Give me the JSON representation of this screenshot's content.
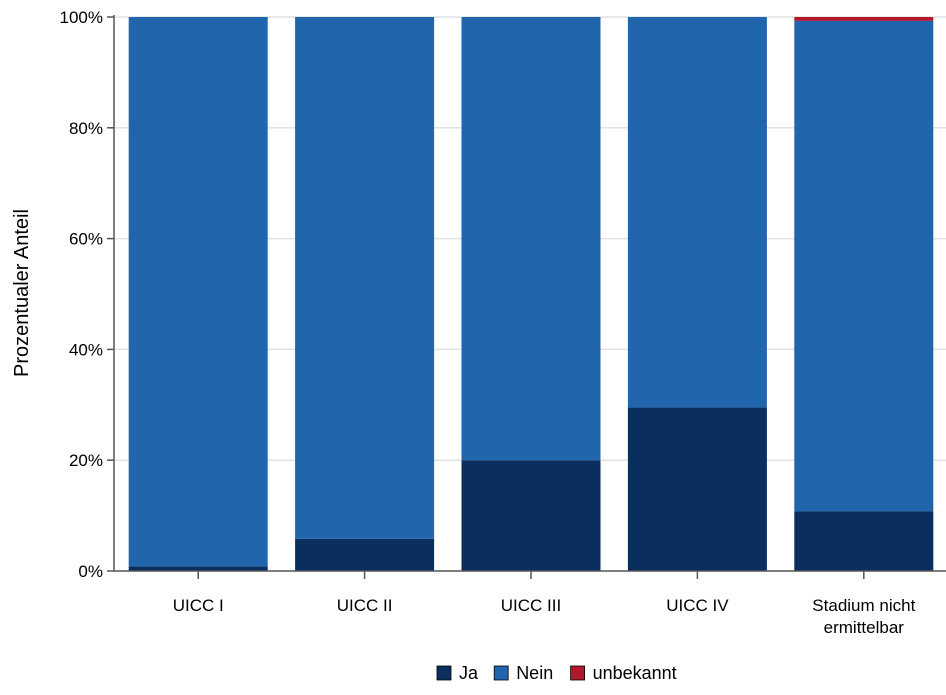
{
  "chart_data": {
    "type": "bar",
    "stacked": true,
    "normalized": true,
    "ylabel": "Prozentualer Anteil",
    "xlabel": "",
    "ylim": [
      0,
      100
    ],
    "yticks": [
      "0%",
      "20%",
      "40%",
      "60%",
      "80%",
      "100%"
    ],
    "ytick_values": [
      0,
      20,
      40,
      60,
      80,
      100
    ],
    "grid": true,
    "legend_position": "bottom-center",
    "categories": [
      [
        "UICC I"
      ],
      [
        "UICC II"
      ],
      [
        "UICC III"
      ],
      [
        "UICC IV"
      ],
      [
        "Stadium nicht",
        "ermittelbar"
      ]
    ],
    "series": [
      {
        "name": "Ja",
        "color": "#0a2f5e",
        "values": [
          0.8,
          5.8,
          20.0,
          29.5,
          10.8
        ]
      },
      {
        "name": "Nein",
        "color": "#2166ac",
        "values": [
          99.2,
          94.2,
          80.0,
          70.5,
          88.5
        ]
      },
      {
        "name": "unbekannt",
        "color": "#b2182b",
        "values": [
          0,
          0,
          0,
          0,
          0.7
        ]
      }
    ]
  }
}
